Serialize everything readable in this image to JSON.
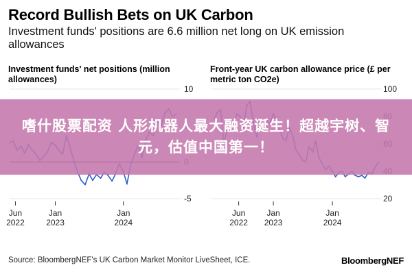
{
  "title": "Record Bullish Bets on UK Carbon",
  "subtitle": "Investment funds' positions are 6.6 million net long on UK emission allowances",
  "banner_text": "嗜什股票配资 人形机器人最大融资诞生！超越宇树、智元，估值中国第一！",
  "source": "Source: BloombergNEF's UK Carbon Market Monitor LiveSheet, ICE.",
  "brand": "BloombergNEF",
  "colors": {
    "line": "#2a60c8",
    "zero": "#000000",
    "banner": "#c478ac"
  },
  "chart_data": [
    {
      "type": "line",
      "title": "Investment funds' net positions (million allowances)",
      "x_ticks": [
        {
          "date": "2022-06-01",
          "label": [
            "Jun",
            "2022"
          ]
        },
        {
          "date": "2023-01-01",
          "label": [
            "Jan",
            "2023"
          ]
        },
        {
          "date": "2024-01-01",
          "label": [
            "Jan",
            "2024"
          ]
        }
      ],
      "y_ticks": [
        {
          "value": 10,
          "label": "10"
        },
        {
          "value": 5,
          "label": "5"
        },
        {
          "value": 0,
          "label": "0"
        },
        {
          "value": -5,
          "label": "-5"
        }
      ],
      "xlim": [
        "2022-05-01",
        "2024-10-15"
      ],
      "ylim": [
        -5,
        10
      ],
      "zero_line": true,
      "series": [
        {
          "x": [
            "2022-05-01",
            "2022-05-20",
            "2022-06-10",
            "2022-07-01",
            "2022-07-20",
            "2022-08-10",
            "2022-09-01",
            "2022-09-20",
            "2022-10-10",
            "2022-11-01",
            "2022-11-20",
            "2022-12-10",
            "2023-01-01",
            "2023-01-20",
            "2023-02-10",
            "2023-03-01",
            "2023-03-20",
            "2023-04-10",
            "2023-05-01",
            "2023-05-20",
            "2023-06-10",
            "2023-07-01",
            "2023-07-20",
            "2023-08-10",
            "2023-09-01",
            "2023-09-20",
            "2023-10-10",
            "2023-11-01",
            "2023-11-20",
            "2023-12-10",
            "2024-01-01",
            "2024-01-20",
            "2024-02-10",
            "2024-03-01",
            "2024-03-20",
            "2024-04-10",
            "2024-05-01",
            "2024-05-20",
            "2024-06-10",
            "2024-07-01",
            "2024-07-20",
            "2024-08-10",
            "2024-09-01",
            "2024-09-20",
            "2024-10-10"
          ],
          "y": [
            2.6,
            2.9,
            1.6,
            2.2,
            1.2,
            2.4,
            1.6,
            1.1,
            0.2,
            0.8,
            1.4,
            2.7,
            2.3,
            1.6,
            1.1,
            3.6,
            2.1,
            0.2,
            -1.4,
            -2.5,
            -3.1,
            -1.6,
            -2.5,
            -1.7,
            -2.2,
            -1.4,
            -1.8,
            -2.6,
            -1.6,
            -0.2,
            -1.3,
            -3.0,
            -0.2,
            1.1,
            2.3,
            0.6,
            3.1,
            4.1,
            3.6,
            5.6,
            4.9,
            6.7,
            7.3,
            6.2,
            6.6
          ]
        }
      ]
    },
    {
      "type": "line",
      "title": "Front-year UK carbon allowance price (£ per metric ton CO2e)",
      "x_ticks": [
        {
          "date": "2022-06-01",
          "label": [
            "Jun",
            "2022"
          ]
        },
        {
          "date": "2023-01-01",
          "label": [
            "Jan",
            "2023"
          ]
        },
        {
          "date": "2024-01-01",
          "label": [
            "Jan",
            "2024"
          ]
        }
      ],
      "y_ticks": [
        {
          "value": 100,
          "label": "100"
        },
        {
          "value": 80,
          "label": "80"
        },
        {
          "value": 60,
          "label": "60"
        },
        {
          "value": 40,
          "label": "40"
        },
        {
          "value": 20,
          "label": "20"
        }
      ],
      "xlim": [
        "2021-12-15",
        "2024-10-15"
      ],
      "ylim": [
        20,
        100
      ],
      "zero_line": false,
      "series": [
        {
          "x": [
            "2022-01-01",
            "2022-01-20",
            "2022-02-10",
            "2022-03-01",
            "2022-03-20",
            "2022-04-10",
            "2022-05-01",
            "2022-05-20",
            "2022-06-10",
            "2022-07-01",
            "2022-07-20",
            "2022-08-10",
            "2022-09-01",
            "2022-09-20",
            "2022-10-10",
            "2022-11-01",
            "2022-11-20",
            "2022-12-10",
            "2023-01-01",
            "2023-01-20",
            "2023-02-10",
            "2023-03-01",
            "2023-03-20",
            "2023-04-10",
            "2023-05-01",
            "2023-05-20",
            "2023-06-10",
            "2023-07-01",
            "2023-07-20",
            "2023-08-10",
            "2023-09-01",
            "2023-09-20",
            "2023-10-10",
            "2023-11-01",
            "2023-11-20",
            "2023-12-10",
            "2024-01-01",
            "2024-01-20",
            "2024-02-10",
            "2024-03-01",
            "2024-03-20",
            "2024-04-10",
            "2024-05-01",
            "2024-05-20",
            "2024-06-10",
            "2024-07-01",
            "2024-07-20",
            "2024-08-10",
            "2024-09-01",
            "2024-09-20",
            "2024-10-10"
          ],
          "y": [
            78,
            83,
            85,
            60,
            70,
            78,
            74,
            82,
            80,
            72,
            88,
            91,
            75,
            65,
            72,
            70,
            78,
            74,
            82,
            76,
            70,
            64,
            62,
            72,
            66,
            56,
            52,
            48,
            47,
            58,
            54,
            62,
            50,
            45,
            41,
            44,
            40,
            36,
            39,
            40,
            36,
            38,
            40,
            37,
            36,
            37,
            35,
            39,
            38,
            43,
            46
          ]
        }
      ]
    }
  ]
}
